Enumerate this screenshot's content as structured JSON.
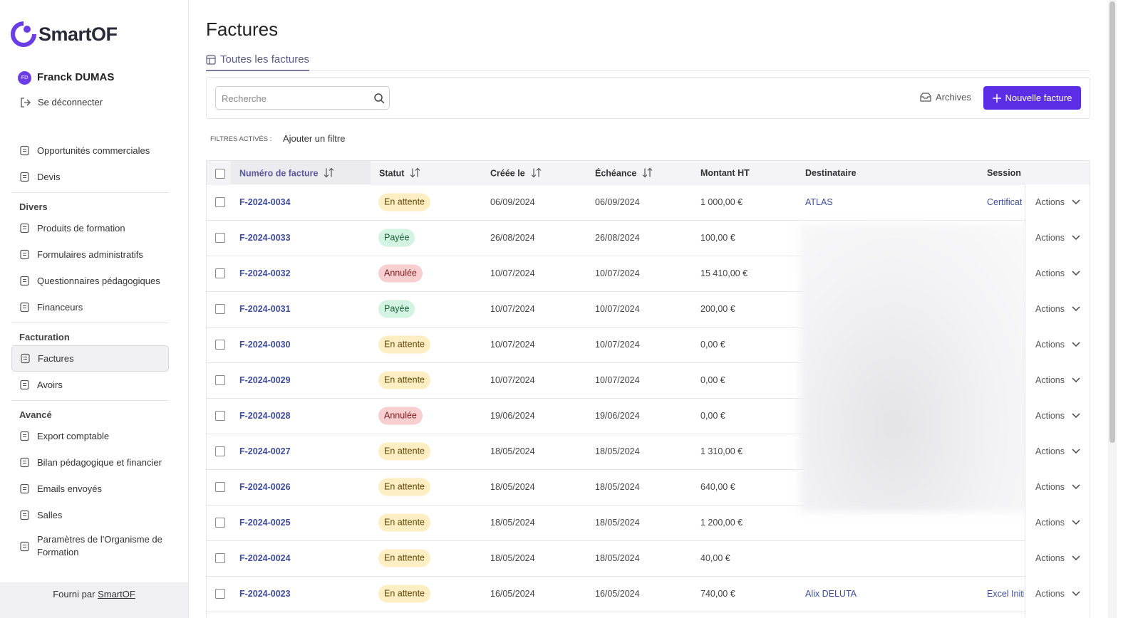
{
  "brand": "SmartOF",
  "user": {
    "initials": "FD",
    "name": "Franck DUMAS",
    "logout": "Se déconnecter"
  },
  "nav": {
    "top": [
      "Opportunités commerciales",
      "Devis"
    ],
    "groups": [
      {
        "title": "Divers",
        "items": [
          "Produits de formation",
          "Formulaires administratifs",
          "Questionnaires pédagogiques",
          "Financeurs"
        ]
      },
      {
        "title": "Facturation",
        "items": [
          "Factures",
          "Avoirs"
        ]
      },
      {
        "title": "Avancé",
        "items": [
          "Export comptable",
          "Bilan pédagogique et financier",
          "Emails envoyés",
          "Salles",
          "Paramètres de l'Organisme de Formation"
        ]
      }
    ],
    "active": "Factures"
  },
  "footer": {
    "prefix": "Fourni par",
    "link": "SmartOF"
  },
  "page": {
    "title": "Factures",
    "tab": "Toutes les factures",
    "search_placeholder": "Recherche",
    "archives": "Archives",
    "new_button": "Nouvelle facture",
    "filters_label": "FILTRES ACTIVÉS :",
    "add_filter": "Ajouter un filtre"
  },
  "table": {
    "columns": [
      "Numéro de facture",
      "Statut",
      "Créée le",
      "Échéance",
      "Montant HT",
      "Destinataire",
      "Session"
    ],
    "action_label": "Actions",
    "rows": [
      [
        "F-2024-0034",
        "En attente",
        "06/09/2024",
        "06/09/2024",
        "1 000,00 €",
        "ATLAS",
        "Certificat"
      ],
      [
        "F-2024-0033",
        "Payée",
        "26/08/2024",
        "26/08/2024",
        "100,00 €",
        null,
        null
      ],
      [
        "F-2024-0032",
        "Annulée",
        "10/07/2024",
        "10/07/2024",
        "15 410,00 €",
        null,
        null
      ],
      [
        "F-2024-0031",
        "Payée",
        "10/07/2024",
        "10/07/2024",
        "200,00 €",
        null,
        null
      ],
      [
        "F-2024-0030",
        "En attente",
        "10/07/2024",
        "10/07/2024",
        "0,00 €",
        null,
        null
      ],
      [
        "F-2024-0029",
        "En attente",
        "10/07/2024",
        "10/07/2024",
        "0,00 €",
        null,
        null
      ],
      [
        "F-2024-0028",
        "Annulée",
        "19/06/2024",
        "19/06/2024",
        "0,00 €",
        null,
        null
      ],
      [
        "F-2024-0027",
        "En attente",
        "18/05/2024",
        "18/05/2024",
        "1 310,00 €",
        null,
        null
      ],
      [
        "F-2024-0026",
        "En attente",
        "18/05/2024",
        "18/05/2024",
        "640,00 €",
        null,
        null
      ],
      [
        "F-2024-0025",
        "En attente",
        "18/05/2024",
        "18/05/2024",
        "1 200,00 €",
        null,
        null
      ],
      [
        "F-2024-0024",
        "En attente",
        "18/05/2024",
        "18/05/2024",
        "40,00 €",
        null,
        null
      ],
      [
        "F-2024-0023",
        "En attente",
        "16/05/2024",
        "16/05/2024",
        "740,00 €",
        "Alix DELUTA",
        "Excel Initi"
      ]
    ]
  }
}
